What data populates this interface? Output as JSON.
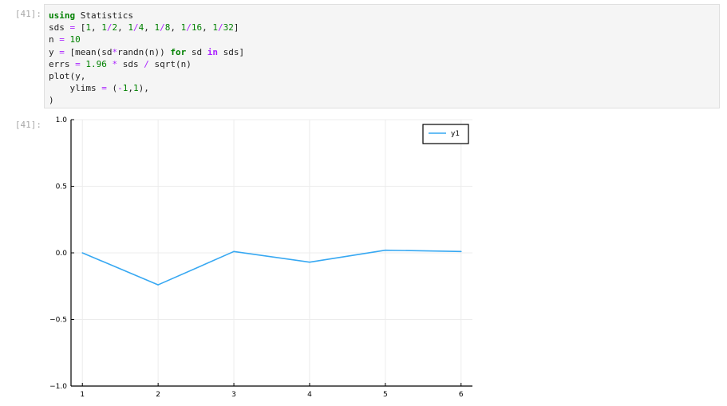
{
  "input_prompt": "[41]:",
  "output_prompt": "[41]:",
  "code_lines": [
    [
      {
        "t": "using",
        "c": "kw"
      },
      {
        "t": " Statistics"
      }
    ],
    [
      {
        "t": "sds "
      },
      {
        "t": "=",
        "c": "op"
      },
      {
        "t": " ["
      },
      {
        "t": "1",
        "c": "num"
      },
      {
        "t": ", "
      },
      {
        "t": "1",
        "c": "num"
      },
      {
        "t": "/",
        "c": "op"
      },
      {
        "t": "2",
        "c": "num"
      },
      {
        "t": ", "
      },
      {
        "t": "1",
        "c": "num"
      },
      {
        "t": "/",
        "c": "op"
      },
      {
        "t": "4",
        "c": "num"
      },
      {
        "t": ", "
      },
      {
        "t": "1",
        "c": "num"
      },
      {
        "t": "/",
        "c": "op"
      },
      {
        "t": "8",
        "c": "num"
      },
      {
        "t": ", "
      },
      {
        "t": "1",
        "c": "num"
      },
      {
        "t": "/",
        "c": "op"
      },
      {
        "t": "16",
        "c": "num"
      },
      {
        "t": ", "
      },
      {
        "t": "1",
        "c": "num"
      },
      {
        "t": "/",
        "c": "op"
      },
      {
        "t": "32",
        "c": "num"
      },
      {
        "t": "]"
      }
    ],
    [
      {
        "t": "n "
      },
      {
        "t": "=",
        "c": "op"
      },
      {
        "t": " "
      },
      {
        "t": "10",
        "c": "num"
      }
    ],
    [
      {
        "t": "y "
      },
      {
        "t": "=",
        "c": "op"
      },
      {
        "t": " [mean(sd"
      },
      {
        "t": "*",
        "c": "op"
      },
      {
        "t": "randn(n)) "
      },
      {
        "t": "for",
        "c": "kw"
      },
      {
        "t": " sd "
      },
      {
        "t": "in",
        "c": "in-kw"
      },
      {
        "t": " sds]"
      }
    ],
    [
      {
        "t": "errs "
      },
      {
        "t": "=",
        "c": "op"
      },
      {
        "t": " "
      },
      {
        "t": "1.96",
        "c": "num"
      },
      {
        "t": " "
      },
      {
        "t": "*",
        "c": "op"
      },
      {
        "t": " sds "
      },
      {
        "t": "/",
        "c": "op"
      },
      {
        "t": " sqrt(n)"
      }
    ],
    [
      {
        "t": "plot(y,"
      }
    ],
    [
      {
        "t": "    ylims "
      },
      {
        "t": "=",
        "c": "op"
      },
      {
        "t": " ("
      },
      {
        "t": "-",
        "c": "op"
      },
      {
        "t": "1",
        "c": "num"
      },
      {
        "t": ","
      },
      {
        "t": "1",
        "c": "num"
      },
      {
        "t": "),"
      }
    ],
    [
      {
        "t": ")"
      }
    ]
  ],
  "colors": {
    "series": "#37a8f2",
    "grid": "#ececec",
    "axis": "#000000"
  },
  "chart_data": {
    "type": "line",
    "x": [
      1,
      2,
      3,
      4,
      5,
      6
    ],
    "series": [
      {
        "name": "y1",
        "values": [
          0.0,
          -0.24,
          0.01,
          -0.07,
          0.02,
          0.01
        ]
      }
    ],
    "xticks": [
      "1",
      "2",
      "3",
      "4",
      "5",
      "6"
    ],
    "yticks": [
      "1.0",
      "0.5",
      "0.0",
      "−0.5",
      "−1.0"
    ],
    "ytick_values": [
      1.0,
      0.5,
      0.0,
      -0.5,
      -1.0
    ],
    "xlim": [
      0.85,
      6.15
    ],
    "ylim": [
      -1,
      1
    ],
    "title": "",
    "xlabel": "",
    "ylabel": "",
    "grid": true,
    "legend_position": "top-right"
  }
}
